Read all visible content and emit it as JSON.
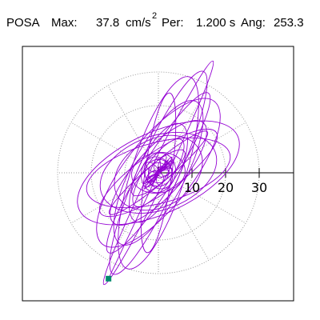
{
  "header": {
    "title": "POSA",
    "max_label": "Max:",
    "max_value": "37.8",
    "max_unit": "cm/s",
    "max_unit_sup": "2",
    "per_label": "Per:",
    "per_value": "1.200 s",
    "ang_label": "Ang:",
    "ang_value": "253.3"
  },
  "chart_data": {
    "type": "polar-hodograph",
    "radial_ticks": [
      10,
      20,
      30
    ],
    "rings": [
      10,
      20,
      30
    ],
    "radial_max": 40,
    "grid": true,
    "angular_gridlines_deg": [
      0,
      30,
      60,
      90,
      120,
      150,
      180,
      210,
      240,
      270,
      300,
      330
    ],
    "peak_marker": {
      "r": 37.8,
      "angle_deg": 253.3
    },
    "colors": {
      "trace": "#9400d3",
      "marker": "#008b6e",
      "grid": "#999999"
    }
  }
}
